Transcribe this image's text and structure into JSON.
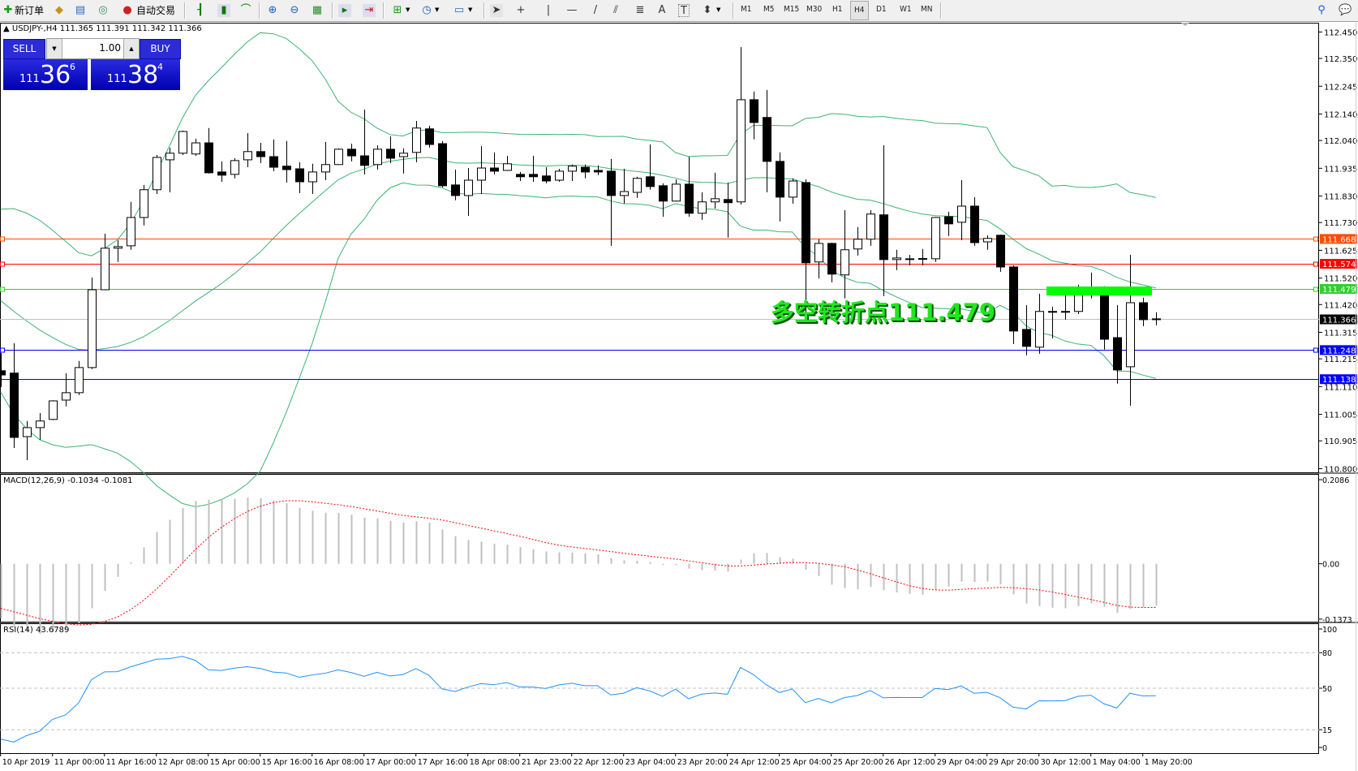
{
  "toolbar": {
    "new_order_label": "新订单",
    "auto_trading_label": "自动交易",
    "timeframes": [
      "M1",
      "M5",
      "M15",
      "M30",
      "H1",
      "H4",
      "D1",
      "W1",
      "MN"
    ],
    "active_timeframe": "H4",
    "text_tool_label": "A",
    "text_label_tool": "T"
  },
  "trade_panel": {
    "sell_label": "SELL",
    "buy_label": "BUY",
    "lot": "1.00",
    "sell_price": {
      "prefix": "111",
      "main": "36",
      "sup": "6"
    },
    "buy_price": {
      "prefix": "111",
      "main": "38",
      "sup": "4"
    }
  },
  "chart_data": {
    "type": "candlestick",
    "header": "▲ USDJPY-,H4  111.365 111.391 111.342 111.366",
    "symbol": "USDJPY-",
    "timeframe": "H4",
    "ylim": [
      110.786,
      112.485
    ],
    "candles_ohlc": [
      [
        111.17,
        111.237,
        111.108,
        111.154
      ],
      [
        111.161,
        111.274,
        110.878,
        110.918
      ],
      [
        110.921,
        110.98,
        110.832,
        110.955
      ],
      [
        110.955,
        111.01,
        110.909,
        110.98
      ],
      [
        110.986,
        111.058,
        110.983,
        111.056
      ],
      [
        111.059,
        111.161,
        111.035,
        111.087
      ],
      [
        111.087,
        111.207,
        111.078,
        111.182
      ],
      [
        111.182,
        111.522,
        111.176,
        111.476
      ],
      [
        111.476,
        111.688,
        111.474,
        111.633
      ],
      [
        111.633,
        111.663,
        111.581,
        111.639
      ],
      [
        111.642,
        111.808,
        111.627,
        111.749
      ],
      [
        111.749,
        111.872,
        111.719,
        111.854
      ],
      [
        111.854,
        111.985,
        111.838,
        111.976
      ],
      [
        111.967,
        112.013,
        111.844,
        111.992
      ],
      [
        111.992,
        112.077,
        111.985,
        112.074
      ],
      [
        111.989,
        112.047,
        111.982,
        112.031
      ],
      [
        112.031,
        112.087,
        111.915,
        111.918
      ],
      [
        111.921,
        111.961,
        111.884,
        111.909
      ],
      [
        111.912,
        111.973,
        111.897,
        111.964
      ],
      [
        111.967,
        112.068,
        111.939,
        111.998
      ],
      [
        111.998,
        112.031,
        111.955,
        111.979
      ],
      [
        111.979,
        112.044,
        111.924,
        111.939
      ],
      [
        111.943,
        112.038,
        111.881,
        111.93
      ],
      [
        111.933,
        111.958,
        111.841,
        111.884
      ],
      [
        111.884,
        111.952,
        111.838,
        111.921
      ],
      [
        111.921,
        112.034,
        111.89,
        111.949
      ],
      [
        111.949,
        112.01,
        111.947,
        112.007
      ],
      [
        112.007,
        112.028,
        111.961,
        111.982
      ],
      [
        111.982,
        112.157,
        111.912,
        111.946
      ],
      [
        111.949,
        112.022,
        111.93,
        112.007
      ],
      [
        112.007,
        112.056,
        111.955,
        111.973
      ],
      [
        111.979,
        112.01,
        111.915,
        111.992
      ],
      [
        111.995,
        112.114,
        111.958,
        112.087
      ],
      [
        112.084,
        112.096,
        112.013,
        112.025
      ],
      [
        112.028,
        112.038,
        111.863,
        111.869
      ],
      [
        111.872,
        111.93,
        111.814,
        111.832
      ],
      [
        111.832,
        111.936,
        111.755,
        111.89
      ],
      [
        111.89,
        112.019,
        111.838,
        111.936
      ],
      [
        111.936,
        111.995,
        111.912,
        111.924
      ],
      [
        111.927,
        111.982,
        111.925,
        111.952
      ],
      [
        111.912,
        111.921,
        111.887,
        111.903
      ],
      [
        111.912,
        111.982,
        111.884,
        111.903
      ],
      [
        111.906,
        111.939,
        111.878,
        111.887
      ],
      [
        111.89,
        111.933,
        111.884,
        111.924
      ],
      [
        111.924,
        111.949,
        111.887,
        111.943
      ],
      [
        111.939,
        111.949,
        111.897,
        111.921
      ],
      [
        111.927,
        111.946,
        111.909,
        111.921
      ],
      [
        111.924,
        111.97,
        111.642,
        111.832
      ],
      [
        111.832,
        111.933,
        111.801,
        111.847
      ],
      [
        111.844,
        111.903,
        111.823,
        111.897
      ],
      [
        111.903,
        112.025,
        111.854,
        111.866
      ],
      [
        111.869,
        111.878,
        111.752,
        111.811
      ],
      [
        111.811,
        111.893,
        111.809,
        111.875
      ],
      [
        111.875,
        111.979,
        111.752,
        111.765
      ],
      [
        111.765,
        111.844,
        111.74,
        111.808
      ],
      [
        111.808,
        111.918,
        111.783,
        111.82
      ],
      [
        111.817,
        111.881,
        111.673,
        111.805
      ],
      [
        111.808,
        112.393,
        111.798,
        112.194
      ],
      [
        112.194,
        112.225,
        112.044,
        112.108
      ],
      [
        112.127,
        112.231,
        111.844,
        111.961
      ],
      [
        111.961,
        111.995,
        111.734,
        111.826
      ],
      [
        111.826,
        111.897,
        111.801,
        111.887
      ],
      [
        111.881,
        111.893,
        111.381,
        111.578
      ],
      [
        111.581,
        111.667,
        111.519,
        111.651
      ],
      [
        111.651,
        111.654,
        111.504,
        111.535
      ],
      [
        111.532,
        111.777,
        111.443,
        111.627
      ],
      [
        111.63,
        111.713,
        111.605,
        111.667
      ],
      [
        111.667,
        111.777,
        111.642,
        111.762
      ],
      [
        111.759,
        112.022,
        111.452,
        111.59
      ],
      [
        111.59,
        111.627,
        111.55,
        111.596
      ],
      [
        111.593,
        111.608,
        111.568,
        111.593
      ],
      [
        111.593,
        111.63,
        111.568,
        111.594
      ],
      [
        111.593,
        111.751,
        111.581,
        111.749
      ],
      [
        111.752,
        111.771,
        111.679,
        111.725
      ],
      [
        111.731,
        111.89,
        111.663,
        111.792
      ],
      [
        111.792,
        111.826,
        111.642,
        111.654
      ],
      [
        111.657,
        111.682,
        111.627,
        111.67
      ],
      [
        111.682,
        111.684,
        111.544,
        111.562
      ],
      [
        111.562,
        111.568,
        111.271,
        111.32
      ],
      [
        111.326,
        111.418,
        111.228,
        111.262
      ],
      [
        111.259,
        111.461,
        111.234,
        111.394
      ],
      [
        111.394,
        111.412,
        111.292,
        111.391
      ],
      [
        111.391,
        111.458,
        111.363,
        111.394
      ],
      [
        111.394,
        111.495,
        111.384,
        111.461
      ],
      [
        111.461,
        111.541,
        111.443,
        111.479
      ],
      [
        111.458,
        111.489,
        111.25,
        111.289
      ],
      [
        111.295,
        111.418,
        111.121,
        111.173
      ],
      [
        111.185,
        111.608,
        111.038,
        111.427
      ],
      [
        111.427,
        111.446,
        111.338,
        111.363
      ],
      [
        111.365,
        111.391,
        111.342,
        111.366
      ]
    ],
    "price_ticks": [
      "112.450",
      "112.350",
      "112.245",
      "112.140",
      "112.040",
      "111.935",
      "111.830",
      "111.730",
      "111.625",
      "111.520",
      "111.420",
      "111.315",
      "111.215",
      "111.110",
      "111.005",
      "110.905",
      "110.800"
    ],
    "time_labels": [
      "10 Apr 2019",
      "11 Apr 00:00",
      "11 Apr 16:00",
      "12 Apr 08:00",
      "15 Apr 00:00",
      "15 Apr 16:00",
      "16 Apr 08:00",
      "17 Apr 00:00",
      "17 Apr 16:00",
      "18 Apr 08:00",
      "21 Apr 23:00",
      "22 Apr 12:00",
      "23 Apr 04:00",
      "23 Apr 20:00",
      "24 Apr 12:00",
      "25 Apr 04:00",
      "25 Apr 20:00",
      "26 Apr 12:00",
      "29 Apr 04:00",
      "29 Apr 20:00",
      "30 Apr 12:00",
      "1 May 04:00",
      "1 May 20:00"
    ],
    "hlines": [
      {
        "price": 111.668,
        "label": "111.668",
        "color": "#ff4a00",
        "handles": true
      },
      {
        "price": 111.574,
        "label": "111.574",
        "color": "#ff0000",
        "handles": true
      },
      {
        "price": 111.479,
        "label": "111.479",
        "color": "#32cd32",
        "handles": true
      },
      {
        "price": 111.248,
        "label": "111.248",
        "color": "#0000ff",
        "handles": true
      },
      {
        "price": 111.138,
        "label": "111.138",
        "color": "#0000ff",
        "handles": false
      }
    ],
    "bid": {
      "price": 111.366,
      "label": "111.366",
      "color": "#c0c0c0"
    },
    "annotation": {
      "text": "多空转折点111.479",
      "price": 111.479,
      "color": "#00ff00"
    },
    "indicators": {
      "bollinger_color": "#3cb371",
      "macd": {
        "label": "MACD(12,26,9) -0.1034 -0.1081",
        "ylim": [
          -0.1437,
          0.2228
        ],
        "ticks": [
          "0.2086",
          "0.00",
          "-0.1373"
        ],
        "tick_values": [
          0.2086,
          0,
          -0.1373
        ],
        "histogram_color": "#c0c0c0",
        "signal_color": "#ff0000"
      },
      "rsi": {
        "label": "RSI(14) 43.6789",
        "ylim": [
          -4.8,
          104.8
        ],
        "ticks": [
          "100",
          "80",
          "50",
          "15",
          "0"
        ],
        "tick_values": [
          100,
          80,
          50,
          15,
          0
        ],
        "levels": [
          80,
          50,
          15
        ],
        "color": "#1e90ff"
      }
    }
  }
}
